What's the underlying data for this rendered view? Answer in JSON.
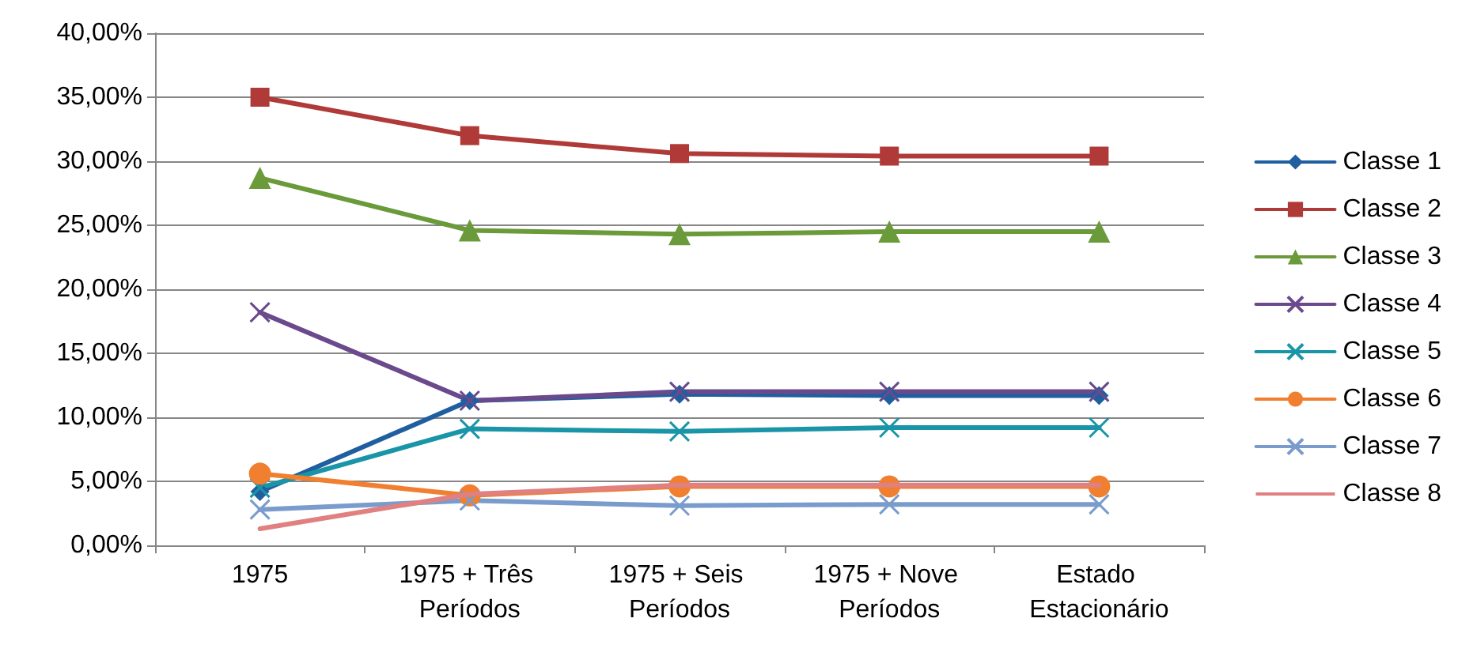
{
  "chart_data": {
    "type": "line",
    "categories": [
      "1975",
      "1975 + Três Períodos",
      "1975 + Seis Períodos",
      "1975 + Nove Períodos",
      "Estado Estacionário"
    ],
    "series": [
      {
        "name": "Classe 1",
        "color": "#1f5f9f",
        "marker": "diamond",
        "values": [
          4.2,
          11.3,
          11.8,
          11.7,
          11.7
        ]
      },
      {
        "name": "Classe 2",
        "color": "#b03a38",
        "marker": "square",
        "values": [
          35.0,
          32.0,
          30.6,
          30.4,
          30.4
        ]
      },
      {
        "name": "Classe 3",
        "color": "#6a9a3a",
        "marker": "triangle",
        "values": [
          28.7,
          24.6,
          24.3,
          24.5,
          24.5
        ]
      },
      {
        "name": "Classe 4",
        "color": "#6a4a8c",
        "marker": "cross",
        "values": [
          18.2,
          11.3,
          12.0,
          12.0,
          12.0
        ]
      },
      {
        "name": "Classe 5",
        "color": "#1a95a8",
        "marker": "cross",
        "values": [
          4.5,
          9.1,
          8.9,
          9.2,
          9.2
        ]
      },
      {
        "name": "Classe 6",
        "color": "#f07f30",
        "marker": "circle",
        "values": [
          5.6,
          3.9,
          4.6,
          4.6,
          4.6
        ]
      },
      {
        "name": "Classe 7",
        "color": "#7a9ccc",
        "marker": "cross",
        "values": [
          2.8,
          3.5,
          3.1,
          3.2,
          3.2
        ]
      },
      {
        "name": "Classe 8",
        "color": "#e08080",
        "marker": "none",
        "values": [
          1.3,
          4.0,
          4.7,
          4.7,
          4.7
        ]
      }
    ],
    "ylim": [
      0,
      40
    ],
    "yticks": [
      {
        "value": 0,
        "label": "0,00%"
      },
      {
        "value": 5,
        "label": "5,00%"
      },
      {
        "value": 10,
        "label": "10,00%"
      },
      {
        "value": 15,
        "label": "15,00%"
      },
      {
        "value": 20,
        "label": "20,00%"
      },
      {
        "value": 25,
        "label": "25,00%"
      },
      {
        "value": 30,
        "label": "30,00%"
      },
      {
        "value": 35,
        "label": "35,00%"
      },
      {
        "value": 40,
        "label": "40,00%"
      }
    ],
    "grid": "y",
    "legend": "right",
    "line_style": "solid"
  }
}
